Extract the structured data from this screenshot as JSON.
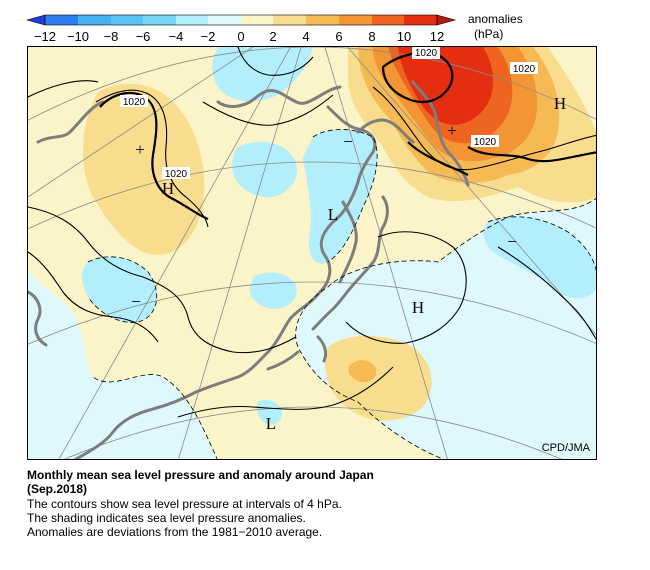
{
  "colorbar": {
    "ticks": [
      "−12",
      "−10",
      "−8",
      "−6",
      "−4",
      "−2",
      "0",
      "2",
      "4",
      "6",
      "8",
      "10",
      "12"
    ],
    "label_line1": "anomalies",
    "label_line2": "(hPa)",
    "colors": {
      "lt_-10": "#1f3fd6",
      "-10_-8": "#2f7ef0",
      "-8_-6": "#44b1f2",
      "-6_-4": "#79d7f5",
      "-4_-2": "#b2eefb",
      "-2_0": "#dff8fc",
      "0_2": "#fbf4c9",
      "2_4": "#f9dd8e",
      "4_6": "#f6ba55",
      "6_8": "#f39435",
      "8_10": "#ee6420",
      "10_12": "#e42e12",
      "gt_12": "#b81a10"
    }
  },
  "map": {
    "pressure_labels": [
      "1020",
      "1020",
      "1020",
      "1020",
      "1020"
    ],
    "high_symbol": "H",
    "low_symbol": "L",
    "plus_symbol": "+",
    "minus_symbol": "−",
    "credit": "CPD/JMA"
  },
  "caption": {
    "title_line1": "Monthly mean sea level pressure and anomaly around Japan",
    "title_line2": "(Sep.2018)",
    "line1": "The contours show sea level pressure at intervals of 4 hPa.",
    "line2": "The shading indicates sea level pressure anomalies.",
    "line3": "Anomalies are deviations from the 1981−2010 average."
  }
}
